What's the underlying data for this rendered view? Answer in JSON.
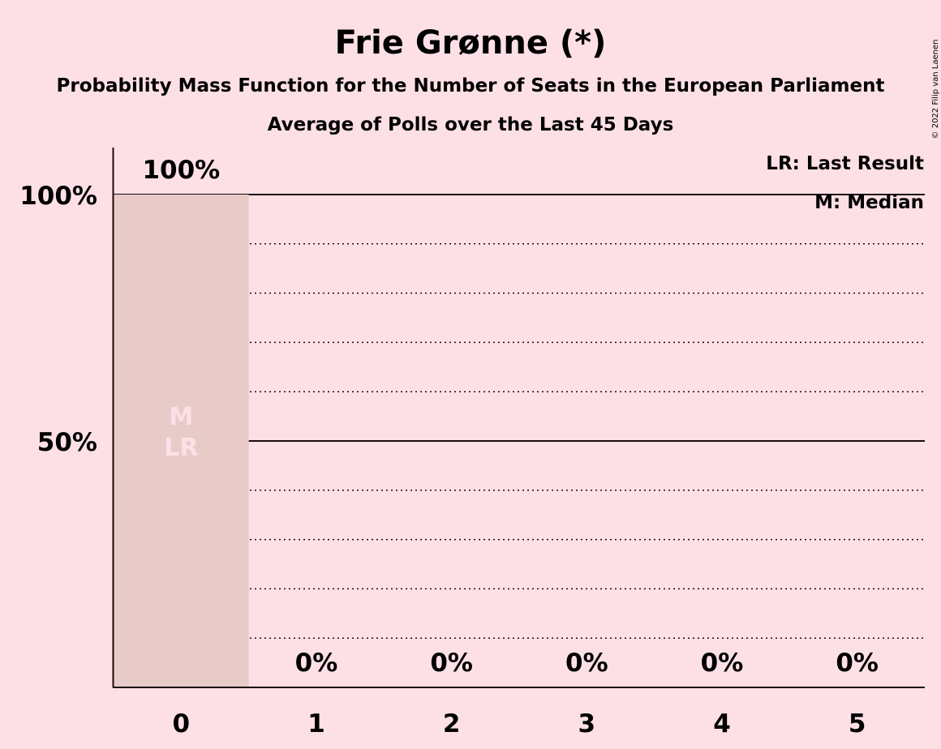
{
  "chart_data": {
    "type": "bar",
    "title": "Frie Grønne (*)",
    "subtitle": "Probability Mass Function for the Number of Seats in the European Parliament",
    "subtitle2": "Average of Polls over the Last 45 Days",
    "categories": [
      "0",
      "1",
      "2",
      "3",
      "4",
      "5"
    ],
    "values": [
      100,
      0,
      0,
      0,
      0,
      0
    ],
    "value_labels": [
      "100%",
      "0%",
      "0%",
      "0%",
      "0%",
      "0%"
    ],
    "ylim": [
      0,
      110
    ],
    "yticks": [
      {
        "value": 50,
        "label": "50%"
      },
      {
        "value": 100,
        "label": "100%"
      }
    ],
    "solid_gridlines": [
      50,
      100
    ],
    "dotted_gridlines": [
      10,
      20,
      30,
      40,
      60,
      70,
      80,
      90
    ],
    "bar_markers": [
      {
        "category": "0",
        "lines": [
          "M",
          "LR"
        ]
      }
    ],
    "legend": [
      "LR: Last Result",
      "M: Median"
    ],
    "legend_position": "top-right",
    "colors": {
      "background": "#fde0e6",
      "bar": "#e8cbc9",
      "axis": "#1a0a0e",
      "marker_text": "#fde0e6"
    }
  },
  "copyright": "© 2022 Filip van Laenen"
}
